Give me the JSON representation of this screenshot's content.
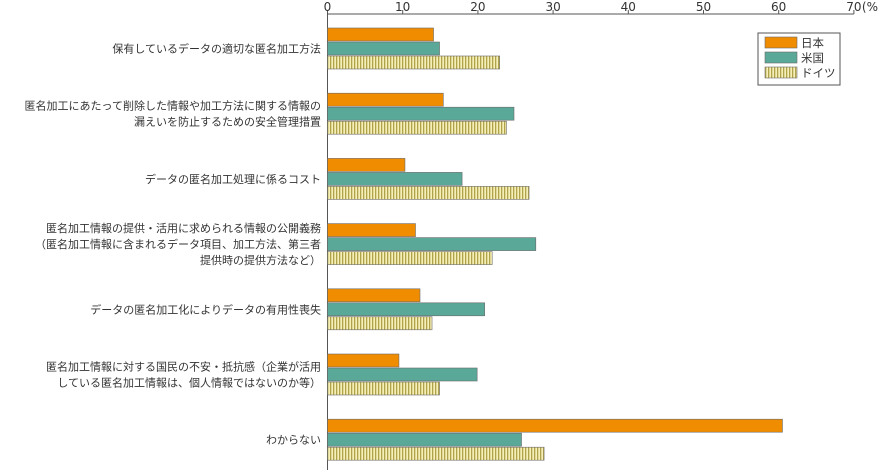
{
  "chart_data": {
    "type": "bar",
    "orientation": "horizontal",
    "unit": "(%)",
    "categories": [
      [
        "保有しているデータの適切な匿名加工方法"
      ],
      [
        "匿名加工にあたって削除した情報や加工方法に関する情報の",
        "漏えいを防止するための安全管理措置"
      ],
      [
        "データの匿名加工処理に係るコスト"
      ],
      [
        "匿名加工情報の提供・活用に求められる情報の公開義務",
        "（匿名加工情報に含まれるデータ項目、加工方法、第三者",
        "提供時の提供方法など）"
      ],
      [
        "データの匿名加工化によりデータの有用性喪失"
      ],
      [
        "匿名加工情報に対する国民の不安・抵抗感（企業が活用",
        "している匿名加工情報は、個人情報ではないのか等）"
      ],
      [
        "わからない"
      ]
    ],
    "series": [
      {
        "name": "日本",
        "color": "#f08c00",
        "pattern": "solid",
        "values": [
          14.1,
          15.4,
          10.3,
          11.7,
          12.3,
          9.5,
          60.5
        ]
      },
      {
        "name": "米国",
        "color": "#5aa898",
        "pattern": "solid",
        "values": [
          14.9,
          24.8,
          17.9,
          27.7,
          20.9,
          19.9,
          25.8
        ]
      },
      {
        "name": "ドイツ",
        "color": "#f3e9a6",
        "pattern": "vertical-stripes",
        "values": [
          22.9,
          23.8,
          26.8,
          21.9,
          13.9,
          14.9,
          28.8
        ]
      }
    ],
    "xlim": [
      0,
      70
    ],
    "xticks": [
      0,
      10,
      20,
      30,
      40,
      50,
      60,
      70
    ],
    "legend_position": "top-right",
    "grid": false
  }
}
